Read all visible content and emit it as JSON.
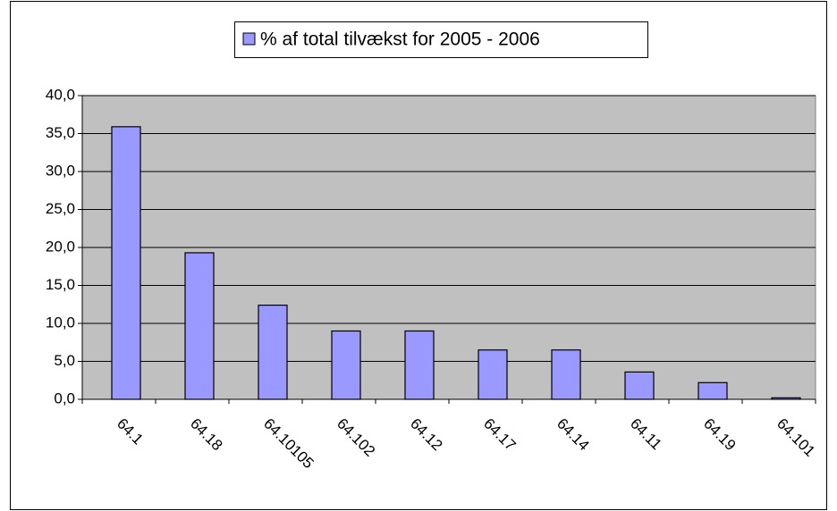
{
  "chart_data": {
    "type": "bar",
    "categories": [
      "64.1",
      "64.18",
      "64.10105",
      "64.102",
      "64.12",
      "64.17",
      "64.14",
      "64.11",
      "64.19",
      "64.101"
    ],
    "series": [
      {
        "name": "% af total tilvækst for 2005 - 2006",
        "color": "#9999ff",
        "values": [
          35.9,
          19.3,
          12.4,
          9.0,
          9.0,
          6.5,
          6.5,
          3.6,
          2.2,
          0.2
        ]
      }
    ],
    "ylim": [
      0,
      40
    ],
    "yticks": [
      {
        "value": 0,
        "label": "0,0"
      },
      {
        "value": 5,
        "label": "5,0"
      },
      {
        "value": 10,
        "label": "10,0"
      },
      {
        "value": 15,
        "label": "15,0"
      },
      {
        "value": 20,
        "label": "20,0"
      },
      {
        "value": 25,
        "label": "25,0"
      },
      {
        "value": 30,
        "label": "30,0"
      },
      {
        "value": 35,
        "label": "35,0"
      },
      {
        "value": 40,
        "label": "40,0"
      }
    ],
    "grid": true,
    "legend": "top"
  }
}
